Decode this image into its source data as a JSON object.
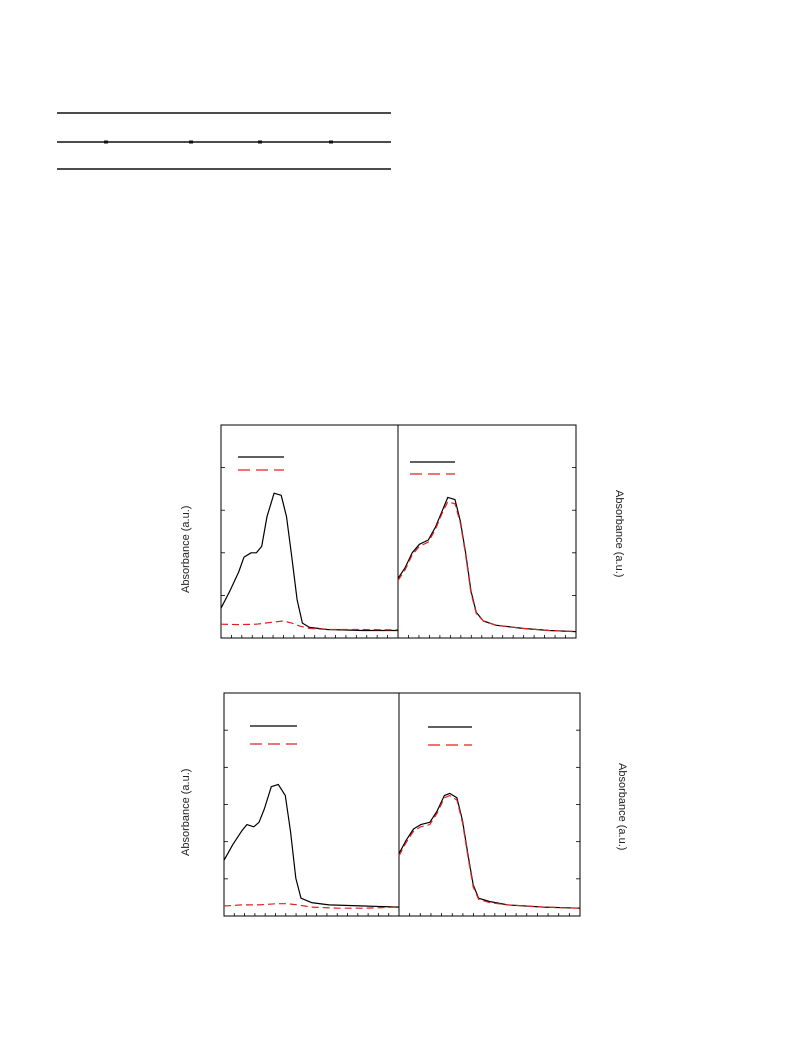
{
  "table": {
    "rows": 2,
    "columns": 5
  },
  "y_axis_label": "Absorbance (a.u.)",
  "chart_data": [
    {
      "type": "line",
      "position_word": "top-left",
      "x_ticks": 17,
      "y_ticks": 4,
      "grid": false,
      "legend": "top-left",
      "series": [
        {
          "style": "solid",
          "color": "#000000",
          "shape": [
            [
              0,
              0.86
            ],
            [
              0.05,
              0.78
            ],
            [
              0.1,
              0.69
            ],
            [
              0.13,
              0.62
            ],
            [
              0.17,
              0.6
            ],
            [
              0.2,
              0.6
            ],
            [
              0.23,
              0.57
            ],
            [
              0.26,
              0.43
            ],
            [
              0.3,
              0.32
            ],
            [
              0.34,
              0.33
            ],
            [
              0.37,
              0.43
            ],
            [
              0.4,
              0.62
            ],
            [
              0.43,
              0.82
            ],
            [
              0.46,
              0.93
            ],
            [
              0.5,
              0.95
            ],
            [
              0.6,
              0.96
            ],
            [
              0.8,
              0.965
            ],
            [
              1.0,
              0.965
            ]
          ]
        },
        {
          "style": "dashed",
          "color": "#e02020",
          "shape": [
            [
              0,
              0.935
            ],
            [
              0.1,
              0.937
            ],
            [
              0.2,
              0.935
            ],
            [
              0.3,
              0.925
            ],
            [
              0.35,
              0.92
            ],
            [
              0.4,
              0.93
            ],
            [
              0.45,
              0.945
            ],
            [
              0.5,
              0.955
            ],
            [
              0.6,
              0.96
            ],
            [
              0.8,
              0.96
            ],
            [
              1.0,
              0.962
            ]
          ]
        }
      ]
    },
    {
      "type": "line",
      "position_word": "top-right",
      "x_ticks": 17,
      "y_ticks": 4,
      "grid": false,
      "legend": "top-left",
      "series": [
        {
          "style": "solid",
          "color": "#000000",
          "shape": [
            [
              0,
              0.72
            ],
            [
              0.04,
              0.67
            ],
            [
              0.08,
              0.6
            ],
            [
              0.12,
              0.56
            ],
            [
              0.17,
              0.54
            ],
            [
              0.21,
              0.48
            ],
            [
              0.25,
              0.4
            ],
            [
              0.28,
              0.34
            ],
            [
              0.32,
              0.35
            ],
            [
              0.35,
              0.45
            ],
            [
              0.38,
              0.6
            ],
            [
              0.41,
              0.78
            ],
            [
              0.44,
              0.88
            ],
            [
              0.48,
              0.92
            ],
            [
              0.55,
              0.94
            ],
            [
              0.7,
              0.955
            ],
            [
              0.85,
              0.965
            ],
            [
              1.0,
              0.97
            ]
          ]
        },
        {
          "style": "dashed",
          "color": "#e02020",
          "shape": [
            [
              0,
              0.73
            ],
            [
              0.04,
              0.68
            ],
            [
              0.08,
              0.61
            ],
            [
              0.12,
              0.57
            ],
            [
              0.17,
              0.55
            ],
            [
              0.21,
              0.49
            ],
            [
              0.25,
              0.41
            ],
            [
              0.28,
              0.36
            ],
            [
              0.32,
              0.37
            ],
            [
              0.35,
              0.46
            ],
            [
              0.38,
              0.61
            ],
            [
              0.41,
              0.79
            ],
            [
              0.44,
              0.885
            ],
            [
              0.48,
              0.92
            ],
            [
              0.55,
              0.94
            ],
            [
              0.7,
              0.955
            ],
            [
              0.85,
              0.965
            ],
            [
              1.0,
              0.97
            ]
          ]
        }
      ]
    },
    {
      "type": "line",
      "position_word": "bottom-left",
      "x_ticks": 17,
      "y_ticks": 5,
      "grid": false,
      "legend": "top-left",
      "series": [
        {
          "style": "solid",
          "color": "#000000",
          "shape": [
            [
              0,
              0.75
            ],
            [
              0.05,
              0.68
            ],
            [
              0.1,
              0.62
            ],
            [
              0.13,
              0.59
            ],
            [
              0.17,
              0.6
            ],
            [
              0.2,
              0.58
            ],
            [
              0.23,
              0.52
            ],
            [
              0.27,
              0.42
            ],
            [
              0.31,
              0.41
            ],
            [
              0.35,
              0.46
            ],
            [
              0.38,
              0.62
            ],
            [
              0.41,
              0.83
            ],
            [
              0.44,
              0.92
            ],
            [
              0.5,
              0.94
            ],
            [
              0.6,
              0.95
            ],
            [
              0.8,
              0.955
            ],
            [
              1.0,
              0.96
            ]
          ]
        },
        {
          "style": "dashed",
          "color": "#e02020",
          "shape": [
            [
              0,
              0.955
            ],
            [
              0.1,
              0.95
            ],
            [
              0.2,
              0.95
            ],
            [
              0.3,
              0.945
            ],
            [
              0.36,
              0.945
            ],
            [
              0.42,
              0.95
            ],
            [
              0.5,
              0.96
            ],
            [
              0.65,
              0.965
            ],
            [
              0.8,
              0.965
            ],
            [
              1.0,
              0.96
            ]
          ]
        }
      ]
    },
    {
      "type": "line",
      "position_word": "bottom-right",
      "x_ticks": 17,
      "y_ticks": 5,
      "grid": false,
      "legend": "top-left",
      "series": [
        {
          "style": "solid",
          "color": "#000000",
          "shape": [
            [
              0,
              0.72
            ],
            [
              0.04,
              0.66
            ],
            [
              0.08,
              0.61
            ],
            [
              0.12,
              0.59
            ],
            [
              0.17,
              0.58
            ],
            [
              0.21,
              0.53
            ],
            [
              0.25,
              0.46
            ],
            [
              0.28,
              0.45
            ],
            [
              0.32,
              0.47
            ],
            [
              0.35,
              0.57
            ],
            [
              0.38,
              0.72
            ],
            [
              0.41,
              0.86
            ],
            [
              0.44,
              0.92
            ],
            [
              0.5,
              0.935
            ],
            [
              0.6,
              0.95
            ],
            [
              0.8,
              0.96
            ],
            [
              1.0,
              0.965
            ]
          ]
        },
        {
          "style": "dashed",
          "color": "#e02020",
          "shape": [
            [
              0,
              0.73
            ],
            [
              0.04,
              0.67
            ],
            [
              0.08,
              0.62
            ],
            [
              0.12,
              0.6
            ],
            [
              0.17,
              0.59
            ],
            [
              0.21,
              0.54
            ],
            [
              0.25,
              0.47
            ],
            [
              0.28,
              0.46
            ],
            [
              0.32,
              0.48
            ],
            [
              0.35,
              0.58
            ],
            [
              0.38,
              0.73
            ],
            [
              0.41,
              0.87
            ],
            [
              0.44,
              0.925
            ],
            [
              0.5,
              0.94
            ],
            [
              0.6,
              0.95
            ],
            [
              0.8,
              0.96
            ],
            [
              1.0,
              0.965
            ]
          ]
        }
      ]
    }
  ]
}
